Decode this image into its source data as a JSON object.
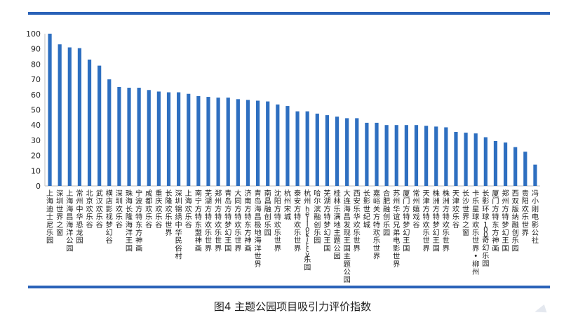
{
  "caption": "图4 主题公园项目吸引力评价指数",
  "colors": {
    "bar": "#2e6fc0",
    "rule": "#2a62b8",
    "axis": "#bfbfbf",
    "text": "#222222"
  },
  "chart_data": {
    "type": "bar",
    "title": "",
    "xlabel": "",
    "ylabel": "",
    "ylim": [
      0,
      100
    ],
    "yticks": [
      0,
      10,
      20,
      30,
      40,
      50,
      60,
      70,
      80,
      90,
      100
    ],
    "grid": false,
    "categories": [
      "上海迪士尼乐园",
      "深圳世界之窗",
      "上海海昌海洋公园",
      "常州中华恐龙园",
      "北京欢乐谷",
      "武汉欢乐谷",
      "横店影视梦幻谷",
      "深圳欢乐谷",
      "珠海长隆海洋王国",
      "宁波方特东方神画",
      "成都欢乐谷",
      "重庆欢乐谷",
      "长隆欢乐世界",
      "深圳锦绣中华民俗村",
      "上海欢乐谷",
      "南宁方特东盟神画",
      "芜湖方特欢乐世界",
      "郑州方特欢乐世界",
      "青岛方特梦幻王国",
      "大同方特欢乐世界",
      "济南方特东方神画",
      "青岛海昌极地海洋世界",
      "南昌融创乐园",
      "沈阳方特欢乐世界",
      "杭州宋城",
      "泰安方特欢乐世界",
      "杭州hellokitty乐园",
      "哈尔滨融创乐园",
      "芜湖方特梦幻王国",
      "桂林乐满地主题公园",
      "大连海昌发现王国主题公园",
      "西安乐华欢乐世界",
      "长影世纪城",
      "嘉峪关方特欢乐世界",
      "合肥融创乐园",
      "苏州华谊兄弟电影世界",
      "厦门方特梦幻王国",
      "常州嬉戏谷",
      "天津方特欢乐世界",
      "株洲方特梦幻王国",
      "株洲方特欢乐世界",
      "天津欢乐谷",
      "长沙世界之窗",
      "卡乐星球欢乐世界•柳州",
      "长影环球100奇幻乐园",
      "厦门方特东方神画",
      "郑州方特梦幻王国",
      "西双版纳融创乐园",
      "贵阳欢乐世界",
      "冯小刚电影公社"
    ],
    "values": [
      100,
      93,
      91,
      90.5,
      83,
      79,
      70,
      65,
      64.5,
      64.5,
      63,
      62,
      61.5,
      61.5,
      60.5,
      59,
      58.5,
      58,
      58,
      57,
      56.5,
      56,
      55.5,
      53.5,
      52.5,
      49,
      49,
      47.5,
      46.5,
      45.5,
      44.5,
      44.5,
      41.5,
      41.5,
      40,
      40,
      40,
      40,
      39.5,
      39,
      38.5,
      35.5,
      35,
      34.5,
      32,
      29.5,
      28.5,
      25.5,
      22.5,
      14
    ]
  }
}
